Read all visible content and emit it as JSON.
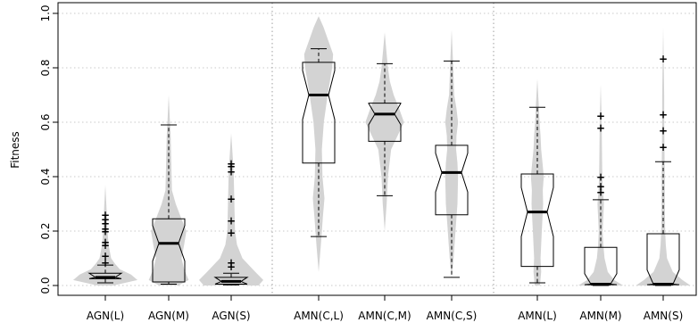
{
  "chart_data": {
    "type": "violin-boxplot",
    "ylabel": "Fitness",
    "ylim": [
      -0.02,
      1.02
    ],
    "yticks": [
      0.0,
      0.2,
      0.4,
      0.6,
      0.8,
      1.0
    ],
    "ytick_labels": [
      "0.0",
      "0.2",
      "0.4",
      "0.6",
      "0.8",
      "1.0"
    ],
    "grid": "horizontal dotted",
    "groups": [
      {
        "name": "AGN",
        "categories": [
          "AGN(L)",
          "AGN(M)",
          "AGN(S)"
        ]
      },
      {
        "name": "AMN",
        "categories": [
          "AMN(C,L)",
          "AMN(C,M)",
          "AMN(C,S)"
        ]
      },
      {
        "name": "AMN",
        "categories": [
          "AMN(L)",
          "AMN(M)",
          "AMN(S)"
        ]
      }
    ],
    "categories": [
      "AGN(L)",
      "AGN(M)",
      "AGN(S)",
      "AMN(C,L)",
      "AMN(C,M)",
      "AMN(C,S)",
      "AMN(L)",
      "AMN(M)",
      "AMN(S)"
    ],
    "boxes": [
      {
        "label": "AGN(L)",
        "min": 0.01,
        "q1": 0.025,
        "median": 0.03,
        "q3": 0.045,
        "max": 0.075,
        "outliers": [
          0.085,
          0.11,
          0.15,
          0.16,
          0.2,
          0.21,
          0.23,
          0.245,
          0.26
        ]
      },
      {
        "label": "AGN(M)",
        "min": 0.005,
        "q1": 0.013,
        "median": 0.155,
        "q3": 0.245,
        "max": 0.59,
        "outliers": []
      },
      {
        "label": "AGN(S)",
        "min": 0.002,
        "q1": 0.005,
        "median": 0.015,
        "q3": 0.03,
        "max": 0.045,
        "outliers": [
          0.07,
          0.085,
          0.195,
          0.24,
          0.32,
          0.42,
          0.44,
          0.45
        ]
      },
      {
        "label": "AMN(C,L)",
        "min": 0.18,
        "q1": 0.45,
        "median": 0.7,
        "q3": 0.82,
        "max": 0.87,
        "outliers": []
      },
      {
        "label": "AMN(C,M)",
        "min": 0.33,
        "q1": 0.53,
        "median": 0.63,
        "q3": 0.67,
        "max": 0.815,
        "outliers": []
      },
      {
        "label": "AMN(C,S)",
        "min": 0.03,
        "q1": 0.26,
        "median": 0.415,
        "q3": 0.515,
        "max": 0.825,
        "outliers": []
      },
      {
        "label": "AMN(L)",
        "min": 0.01,
        "q1": 0.07,
        "median": 0.27,
        "q3": 0.41,
        "max": 0.655,
        "outliers": []
      },
      {
        "label": "AMN(M)",
        "min": 0.0,
        "q1": 0.003,
        "median": 0.005,
        "q3": 0.14,
        "max": 0.315,
        "outliers": [
          0.345,
          0.365,
          0.4,
          0.58,
          0.625
        ]
      },
      {
        "label": "AMN(S)",
        "min": 0.0,
        "q1": 0.003,
        "median": 0.005,
        "q3": 0.19,
        "max": 0.455,
        "outliers": [
          0.51,
          0.57,
          0.63,
          0.835
        ]
      }
    ],
    "violins": [
      {
        "label": "AGN(L)",
        "profile": [
          [
            0.0,
            0.25
          ],
          [
            0.02,
            1.0
          ],
          [
            0.04,
            0.8
          ],
          [
            0.06,
            0.45
          ],
          [
            0.08,
            0.3
          ],
          [
            0.1,
            0.18
          ],
          [
            0.15,
            0.1
          ],
          [
            0.2,
            0.07
          ],
          [
            0.25,
            0.05
          ],
          [
            0.3,
            0.03
          ],
          [
            0.37,
            0.0
          ]
        ]
      },
      {
        "label": "AGN(M)",
        "profile": [
          [
            0.0,
            0.3
          ],
          [
            0.02,
            0.62
          ],
          [
            0.06,
            0.48
          ],
          [
            0.1,
            0.4
          ],
          [
            0.15,
            0.48
          ],
          [
            0.2,
            0.55
          ],
          [
            0.25,
            0.38
          ],
          [
            0.3,
            0.22
          ],
          [
            0.35,
            0.1
          ],
          [
            0.45,
            0.08
          ],
          [
            0.55,
            0.06
          ],
          [
            0.6,
            0.04
          ],
          [
            0.7,
            0.0
          ]
        ]
      },
      {
        "label": "AGN(S)",
        "profile": [
          [
            0.0,
            0.85
          ],
          [
            0.02,
            1.0
          ],
          [
            0.05,
            0.75
          ],
          [
            0.1,
            0.35
          ],
          [
            0.15,
            0.18
          ],
          [
            0.2,
            0.12
          ],
          [
            0.3,
            0.1
          ],
          [
            0.4,
            0.08
          ],
          [
            0.45,
            0.06
          ],
          [
            0.56,
            0.0
          ]
        ]
      },
      {
        "label": "AMN(C,L)",
        "profile": [
          [
            0.05,
            0.0
          ],
          [
            0.15,
            0.07
          ],
          [
            0.25,
            0.13
          ],
          [
            0.32,
            0.18
          ],
          [
            0.4,
            0.12
          ],
          [
            0.5,
            0.1
          ],
          [
            0.6,
            0.16
          ],
          [
            0.7,
            0.28
          ],
          [
            0.8,
            0.42
          ],
          [
            0.85,
            0.45
          ],
          [
            0.9,
            0.3
          ],
          [
            0.95,
            0.15
          ],
          [
            0.99,
            0.0
          ]
        ]
      },
      {
        "label": "AMN(C,M)",
        "profile": [
          [
            0.2,
            0.0
          ],
          [
            0.3,
            0.06
          ],
          [
            0.4,
            0.1
          ],
          [
            0.5,
            0.2
          ],
          [
            0.55,
            0.4
          ],
          [
            0.6,
            0.6
          ],
          [
            0.65,
            0.45
          ],
          [
            0.7,
            0.28
          ],
          [
            0.75,
            0.16
          ],
          [
            0.8,
            0.1
          ],
          [
            0.85,
            0.06
          ],
          [
            0.93,
            0.0
          ]
        ]
      },
      {
        "label": "AMN(C,S)",
        "profile": [
          [
            0.03,
            0.0
          ],
          [
            0.1,
            0.06
          ],
          [
            0.2,
            0.12
          ],
          [
            0.3,
            0.18
          ],
          [
            0.4,
            0.2
          ],
          [
            0.45,
            0.18
          ],
          [
            0.5,
            0.14
          ],
          [
            0.55,
            0.15
          ],
          [
            0.6,
            0.2
          ],
          [
            0.65,
            0.15
          ],
          [
            0.7,
            0.08
          ],
          [
            0.8,
            0.05
          ],
          [
            0.94,
            0.0
          ]
        ]
      },
      {
        "label": "AMN(L)",
        "profile": [
          [
            0.0,
            0.08
          ],
          [
            0.05,
            0.12
          ],
          [
            0.1,
            0.1
          ],
          [
            0.15,
            0.12
          ],
          [
            0.2,
            0.14
          ],
          [
            0.25,
            0.16
          ],
          [
            0.3,
            0.18
          ],
          [
            0.35,
            0.17
          ],
          [
            0.4,
            0.2
          ],
          [
            0.45,
            0.16
          ],
          [
            0.5,
            0.12
          ],
          [
            0.55,
            0.1
          ],
          [
            0.6,
            0.07
          ],
          [
            0.65,
            0.05
          ],
          [
            0.76,
            0.0
          ]
        ]
      },
      {
        "label": "AMN(M)",
        "profile": [
          [
            0.0,
            0.7
          ],
          [
            0.02,
            0.42
          ],
          [
            0.05,
            0.22
          ],
          [
            0.1,
            0.12
          ],
          [
            0.15,
            0.08
          ],
          [
            0.2,
            0.06
          ],
          [
            0.25,
            0.08
          ],
          [
            0.3,
            0.1
          ],
          [
            0.35,
            0.07
          ],
          [
            0.4,
            0.05
          ],
          [
            0.5,
            0.04
          ],
          [
            0.6,
            0.03
          ],
          [
            0.74,
            0.0
          ]
        ]
      },
      {
        "label": "AMN(S)",
        "profile": [
          [
            0.0,
            0.85
          ],
          [
            0.02,
            0.6
          ],
          [
            0.05,
            0.3
          ],
          [
            0.1,
            0.12
          ],
          [
            0.15,
            0.08
          ],
          [
            0.2,
            0.06
          ],
          [
            0.3,
            0.05
          ],
          [
            0.4,
            0.05
          ],
          [
            0.5,
            0.04
          ],
          [
            0.6,
            0.03
          ],
          [
            0.7,
            0.03
          ],
          [
            0.8,
            0.02
          ],
          [
            0.95,
            0.0
          ]
        ]
      }
    ],
    "colors": {
      "violin": "#d3d3d3",
      "box": "#000000",
      "grid": "#b8b8b8"
    }
  }
}
